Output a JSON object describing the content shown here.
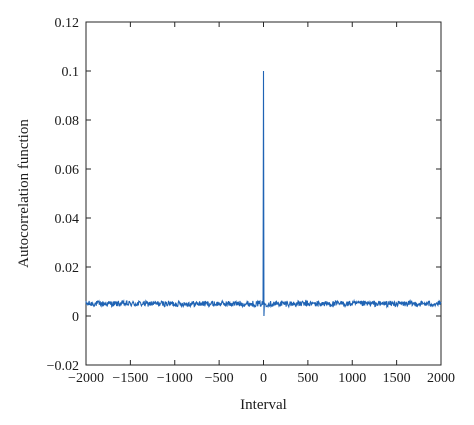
{
  "chart_data": {
    "type": "line",
    "title": "",
    "xlabel": "Interval",
    "ylabel": "Autocorrelation function",
    "xlim": [
      -2000,
      2000
    ],
    "ylim": [
      -0.02,
      0.12
    ],
    "xticks": [
      -2000,
      -1500,
      -1000,
      -500,
      0,
      500,
      1000,
      1500,
      2000
    ],
    "yticks": [
      -0.02,
      0,
      0.02,
      0.04,
      0.06,
      0.08,
      0.1,
      0.12
    ],
    "xtick_labels": [
      "−2000",
      "−1500",
      "−1000",
      "−500",
      "0",
      "500",
      "1000",
      "1500",
      "2000"
    ],
    "ytick_labels": [
      "−0.02",
      "0",
      "0.02",
      "0.04",
      "0.06",
      "0.08",
      "0.1",
      "0.12"
    ],
    "grid": false,
    "series": [
      {
        "color": "#1f63b4",
        "baseline_level": 0.005,
        "noise_amplitude": 0.0012,
        "peak": {
          "x": 0,
          "y": 0.1
        },
        "dip_near_peak": {
          "x": 5,
          "y": 0
        },
        "x_step": 5
      }
    ],
    "colors": {
      "line": "#1f63b4",
      "axes": "#262626"
    }
  }
}
